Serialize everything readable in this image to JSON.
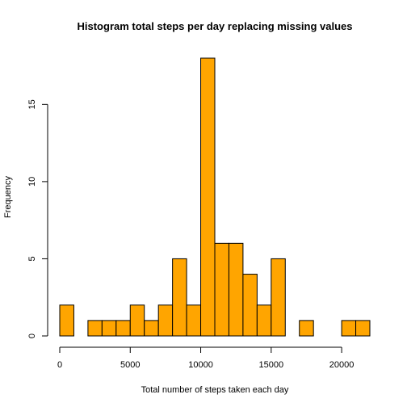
{
  "chart_data": {
    "type": "bar",
    "title": "Histogram total steps per day replacing missing values",
    "xlabel": "Total number of steps taken each day",
    "ylabel": "Frequency",
    "bar_color": "#FFA500",
    "border_color": "#000000",
    "bin_width": 1000,
    "bins": [
      {
        "start": 0,
        "end": 1000,
        "count": 2
      },
      {
        "start": 1000,
        "end": 2000,
        "count": 0
      },
      {
        "start": 2000,
        "end": 3000,
        "count": 1
      },
      {
        "start": 3000,
        "end": 4000,
        "count": 1
      },
      {
        "start": 4000,
        "end": 5000,
        "count": 1
      },
      {
        "start": 5000,
        "end": 6000,
        "count": 2
      },
      {
        "start": 6000,
        "end": 7000,
        "count": 1
      },
      {
        "start": 7000,
        "end": 8000,
        "count": 2
      },
      {
        "start": 8000,
        "end": 9000,
        "count": 5
      },
      {
        "start": 9000,
        "end": 10000,
        "count": 2
      },
      {
        "start": 10000,
        "end": 11000,
        "count": 18
      },
      {
        "start": 11000,
        "end": 12000,
        "count": 6
      },
      {
        "start": 12000,
        "end": 13000,
        "count": 6
      },
      {
        "start": 13000,
        "end": 14000,
        "count": 4
      },
      {
        "start": 14000,
        "end": 15000,
        "count": 2
      },
      {
        "start": 15000,
        "end": 16000,
        "count": 5
      },
      {
        "start": 16000,
        "end": 17000,
        "count": 0
      },
      {
        "start": 17000,
        "end": 18000,
        "count": 1
      },
      {
        "start": 18000,
        "end": 19000,
        "count": 0
      },
      {
        "start": 19000,
        "end": 20000,
        "count": 0
      },
      {
        "start": 20000,
        "end": 21000,
        "count": 1
      },
      {
        "start": 21000,
        "end": 22000,
        "count": 1
      }
    ],
    "xlim": [
      0,
      22000
    ],
    "ylim": [
      0,
      18
    ],
    "x_ticks": [
      0,
      5000,
      10000,
      15000,
      20000
    ],
    "y_ticks": [
      0,
      5,
      10,
      15
    ],
    "grid": false,
    "legend": "none"
  }
}
